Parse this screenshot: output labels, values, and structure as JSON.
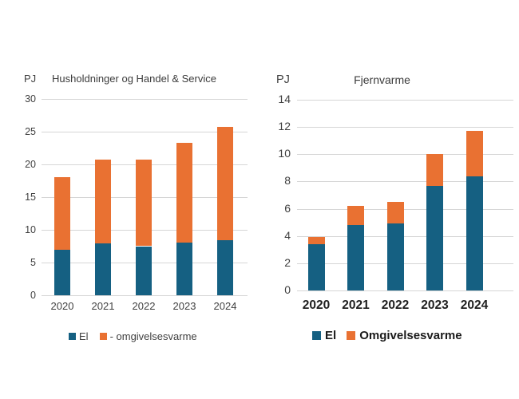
{
  "page": {
    "background": "#ffffff"
  },
  "colors": {
    "el": "#156082",
    "omgivelsesvarme": "#e97132",
    "gridline": "#d6d6d6",
    "tick_text": "#404040",
    "title_text": "#3b3b3b"
  },
  "chart_data": [
    {
      "id": "husholdninger-handel-service",
      "type": "bar",
      "stacked": true,
      "title": "Husholdninger og Handel & Service",
      "unit_label": "PJ",
      "categories": [
        "2020",
        "2021",
        "2022",
        "2023",
        "2024"
      ],
      "series": [
        {
          "name": "El",
          "color_key": "el",
          "values": [
            7.0,
            7.9,
            7.5,
            8.0,
            8.4
          ]
        },
        {
          "name": "- omgivelsesvarme",
          "color_key": "omgivelsesvarme",
          "values": [
            11.0,
            12.8,
            13.2,
            15.3,
            17.3
          ]
        }
      ],
      "totals": [
        18.0,
        20.7,
        20.7,
        23.3,
        25.7
      ],
      "xlabel": "",
      "ylabel": "PJ",
      "ylim": [
        0,
        30
      ],
      "yticks": [
        0,
        5,
        10,
        15,
        20,
        25,
        30
      ],
      "grid": true,
      "legend_position": "bottom",
      "legend": [
        "El",
        "- omgivelsesvarme"
      ]
    },
    {
      "id": "fjernvarme",
      "type": "bar",
      "stacked": true,
      "title": "Fjernvarme",
      "unit_label": "PJ",
      "categories": [
        "2020",
        "2021",
        "2022",
        "2023",
        "2024"
      ],
      "series": [
        {
          "name": "El",
          "color_key": "el",
          "values": [
            3.4,
            4.8,
            4.9,
            7.7,
            8.4
          ]
        },
        {
          "name": "Omgivelsesvarme",
          "color_key": "omgivelsesvarme",
          "values": [
            0.5,
            1.4,
            1.6,
            2.3,
            3.3
          ]
        }
      ],
      "totals": [
        3.9,
        6.2,
        6.5,
        10.0,
        11.7
      ],
      "xlabel": "",
      "ylabel": "PJ",
      "ylim": [
        0,
        14
      ],
      "yticks": [
        0,
        2,
        4,
        6,
        8,
        10,
        12,
        14
      ],
      "grid": true,
      "legend_position": "bottom",
      "legend": [
        "El",
        "Omgivelsesvarme"
      ]
    }
  ]
}
